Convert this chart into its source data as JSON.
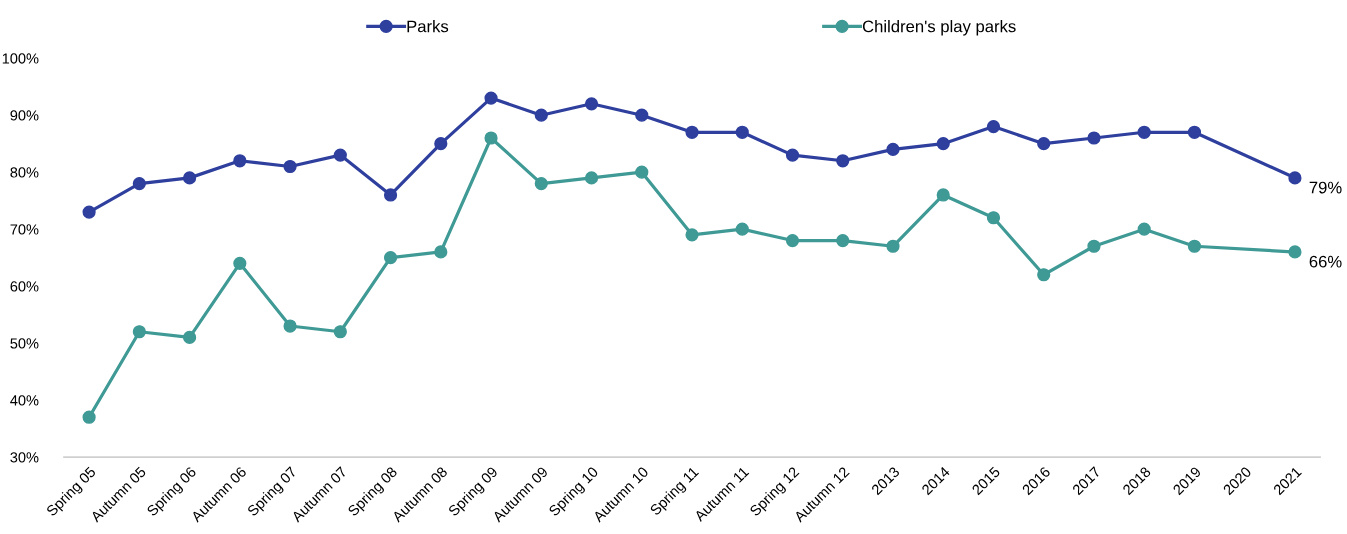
{
  "chart_data": {
    "type": "line",
    "categories": [
      "Spring 05",
      "Autumn 05",
      "Spring 06",
      "Autumn 06",
      "Spring 07",
      "Autumn 07",
      "Spring 08",
      "Autumn 08",
      "Spring 09",
      "Autumn 09",
      "Spring 10",
      "Autumn 10",
      "Spring 11",
      "Autumn 11",
      "Spring 12",
      "Autumn 12",
      "2013",
      "2014",
      "2015",
      "2016",
      "2017",
      "2018",
      "2019",
      "2020",
      "2021"
    ],
    "series": [
      {
        "name": "Parks",
        "color": "#2e3f9e",
        "values": [
          73,
          78,
          79,
          82,
          81,
          83,
          76,
          85,
          93,
          90,
          92,
          90,
          87,
          87,
          83,
          82,
          84,
          85,
          88,
          85,
          86,
          87,
          87,
          null,
          79
        ],
        "value_labels": [
          null,
          null,
          null,
          null,
          null,
          null,
          null,
          null,
          null,
          null,
          null,
          null,
          null,
          null,
          null,
          null,
          null,
          null,
          null,
          null,
          null,
          null,
          null,
          null,
          "79%"
        ]
      },
      {
        "name": "Children's play parks",
        "color": "#3f9a96",
        "values": [
          37,
          52,
          51,
          64,
          53,
          52,
          65,
          66,
          86,
          78,
          79,
          80,
          69,
          70,
          68,
          68,
          67,
          76,
          72,
          62,
          67,
          70,
          67,
          null,
          66
        ],
        "value_labels": [
          null,
          null,
          null,
          null,
          null,
          null,
          null,
          null,
          null,
          null,
          null,
          null,
          null,
          null,
          null,
          null,
          null,
          null,
          null,
          null,
          null,
          null,
          null,
          null,
          "66%"
        ]
      }
    ],
    "ylim": [
      30,
      100
    ],
    "yticks": [
      {
        "value": 30,
        "label": "30%"
      },
      {
        "value": 40,
        "label": "40%"
      },
      {
        "value": 50,
        "label": "50%"
      },
      {
        "value": 60,
        "label": "60%"
      },
      {
        "value": 70,
        "label": "70%"
      },
      {
        "value": 80,
        "label": "80%"
      },
      {
        "value": 90,
        "label": "90%"
      },
      {
        "value": 100,
        "label": "100%"
      }
    ],
    "grid": false,
    "legend": "top",
    "marker": "circle",
    "line_style": "solid"
  }
}
